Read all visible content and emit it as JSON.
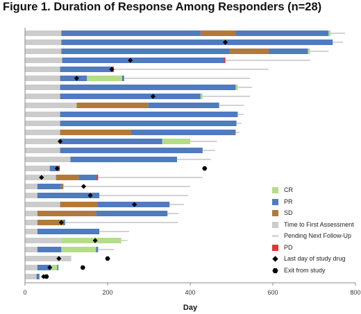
{
  "figure_title": "Figure 1. Duration of Response Among Responders (n=28)",
  "legend": [
    {
      "key": "cr",
      "label": "CR",
      "symbol": "square",
      "color": "#b5dd88"
    },
    {
      "key": "pr",
      "label": "PR",
      "symbol": "square",
      "color": "#4f7bbf"
    },
    {
      "key": "sd",
      "label": "SD",
      "symbol": "square",
      "color": "#b07a3a"
    },
    {
      "key": "tfa",
      "label": "Time to First Assessment",
      "symbol": "square",
      "color": "#cccccc"
    },
    {
      "key": "pending",
      "label": "Pending Next Follow-Up",
      "symbol": "line",
      "color": "#c4c4c4"
    },
    {
      "key": "pd",
      "label": "PD",
      "symbol": "square",
      "color": "#d93a36"
    },
    {
      "key": "last_dose",
      "label": "Last day of study drug",
      "symbol": "diamond",
      "color": "#000000"
    },
    {
      "key": "exit",
      "label": "Exit from study",
      "symbol": "hexagon",
      "color": "#000000"
    }
  ],
  "chart_data": {
    "type": "bar",
    "orientation": "horizontal",
    "stacked": true,
    "title": "Figure 1. Duration of Response Among Responders (n=28)",
    "xlabel": "Day",
    "ylabel": "",
    "xlim": [
      0,
      800
    ],
    "xticks": [
      0,
      200,
      400,
      600,
      800
    ],
    "grid": false,
    "legend_position": "lower-right",
    "colors": {
      "cr": "#b5dd88",
      "pr": "#4f7bbf",
      "sd": "#b07a3a",
      "tfa": "#cccccc",
      "pending": "#c4c4c4",
      "pd": "#d93a36",
      "marker": "#000000"
    },
    "patients": [
      {
        "segments": [
          {
            "state": "tfa",
            "from": 0,
            "to": 88
          },
          {
            "state": "pr",
            "from": 88,
            "to": 425
          },
          {
            "state": "sd",
            "from": 425,
            "to": 510
          },
          {
            "state": "pr",
            "from": 510,
            "to": 735
          },
          {
            "state": "cr",
            "from": 735,
            "to": 740
          }
        ],
        "pending_to": 775
      },
      {
        "segments": [
          {
            "state": "tfa",
            "from": 0,
            "to": 88
          },
          {
            "state": "pr",
            "from": 88,
            "to": 745
          }
        ],
        "pending_to": 770,
        "last_dose": 485
      },
      {
        "segments": [
          {
            "state": "tfa",
            "from": 0,
            "to": 88
          },
          {
            "state": "pr",
            "from": 88,
            "to": 495
          },
          {
            "state": "sd",
            "from": 495,
            "to": 590
          },
          {
            "state": "pr",
            "from": 590,
            "to": 685
          },
          {
            "state": "cr",
            "from": 685,
            "to": 690
          }
        ],
        "pending_to": 735
      },
      {
        "segments": [
          {
            "state": "tfa",
            "from": 0,
            "to": 90
          },
          {
            "state": "pr",
            "from": 90,
            "to": 480
          },
          {
            "state": "pd",
            "from": 480,
            "to": 485
          }
        ],
        "pending_to": 690,
        "last_dose": 255
      },
      {
        "segments": [
          {
            "state": "tfa",
            "from": 0,
            "to": 85
          },
          {
            "state": "pr",
            "from": 85,
            "to": 210
          },
          {
            "state": "pd",
            "from": 210,
            "to": 215
          }
        ],
        "pending_to": 590,
        "last_dose": 210
      },
      {
        "segments": [
          {
            "state": "tfa",
            "from": 0,
            "to": 85
          },
          {
            "state": "pr",
            "from": 85,
            "to": 150
          },
          {
            "state": "cr",
            "from": 150,
            "to": 235
          },
          {
            "state": "pr",
            "from": 235,
            "to": 240
          }
        ],
        "pending_to": 545,
        "last_dose": 125
      },
      {
        "segments": [
          {
            "state": "tfa",
            "from": 0,
            "to": 85
          },
          {
            "state": "pr",
            "from": 85,
            "to": 510
          },
          {
            "state": "cr",
            "from": 510,
            "to": 515
          }
        ],
        "pending_to": 550
      },
      {
        "segments": [
          {
            "state": "tfa",
            "from": 0,
            "to": 85
          },
          {
            "state": "pr",
            "from": 85,
            "to": 425
          },
          {
            "state": "cr",
            "from": 425,
            "to": 430
          }
        ],
        "pending_to": 545,
        "last_dose": 310
      },
      {
        "segments": [
          {
            "state": "tfa",
            "from": 0,
            "to": 125
          },
          {
            "state": "sd",
            "from": 125,
            "to": 298
          },
          {
            "state": "pr",
            "from": 298,
            "to": 470
          }
        ],
        "pending_to": 530
      },
      {
        "segments": [
          {
            "state": "tfa",
            "from": 0,
            "to": 85
          },
          {
            "state": "pr",
            "from": 85,
            "to": 515
          }
        ],
        "pending_to": 530
      },
      {
        "segments": [
          {
            "state": "tfa",
            "from": 0,
            "to": 85
          },
          {
            "state": "pr",
            "from": 85,
            "to": 512
          }
        ],
        "pending_to": 525
      },
      {
        "segments": [
          {
            "state": "tfa",
            "from": 0,
            "to": 85
          },
          {
            "state": "sd",
            "from": 85,
            "to": 258
          },
          {
            "state": "pr",
            "from": 258,
            "to": 510
          }
        ],
        "pending_to": 520
      },
      {
        "segments": [
          {
            "state": "tfa",
            "from": 0,
            "to": 85
          },
          {
            "state": "pr",
            "from": 85,
            "to": 332
          },
          {
            "state": "cr",
            "from": 332,
            "to": 400
          }
        ],
        "pending_to": 465,
        "last_dose": 85
      },
      {
        "segments": [
          {
            "state": "tfa",
            "from": 0,
            "to": 85
          },
          {
            "state": "pr",
            "from": 85,
            "to": 430
          }
        ],
        "pending_to": 460
      },
      {
        "segments": [
          {
            "state": "tfa",
            "from": 0,
            "to": 110
          },
          {
            "state": "pr",
            "from": 110,
            "to": 368
          }
        ],
        "pending_to": 450
      },
      {
        "segments": [
          {
            "state": "tfa",
            "from": 0,
            "to": 60
          },
          {
            "state": "pr",
            "from": 60,
            "to": 80
          },
          {
            "state": "pd",
            "from": 80,
            "to": 84
          }
        ],
        "last_dose": 78,
        "exit": 435
      },
      {
        "segments": [
          {
            "state": "tfa",
            "from": 0,
            "to": 75
          },
          {
            "state": "sd",
            "from": 75,
            "to": 130
          },
          {
            "state": "pr",
            "from": 130,
            "to": 173
          },
          {
            "state": "pd",
            "from": 173,
            "to": 177
          }
        ],
        "pending_to": 430,
        "last_dose": 40
      },
      {
        "segments": [
          {
            "state": "tfa",
            "from": 0,
            "to": 30
          },
          {
            "state": "pr",
            "from": 30,
            "to": 87
          },
          {
            "state": "sd",
            "from": 87,
            "to": 93
          }
        ],
        "pending_to": 400,
        "last_dose": 142
      },
      {
        "segments": [
          {
            "state": "tfa",
            "from": 0,
            "to": 30
          },
          {
            "state": "pr",
            "from": 30,
            "to": 180
          }
        ],
        "pending_to": 395,
        "last_dose": 158
      },
      {
        "segments": [
          {
            "state": "tfa",
            "from": 0,
            "to": 85
          },
          {
            "state": "sd",
            "from": 85,
            "to": 175
          },
          {
            "state": "pr",
            "from": 175,
            "to": 350
          }
        ],
        "pending_to": 385,
        "last_dose": 265
      },
      {
        "segments": [
          {
            "state": "tfa",
            "from": 0,
            "to": 30
          },
          {
            "state": "sd",
            "from": 30,
            "to": 172
          },
          {
            "state": "pr",
            "from": 172,
            "to": 345
          }
        ],
        "pending_to": 372
      },
      {
        "segments": [
          {
            "state": "tfa",
            "from": 0,
            "to": 30
          },
          {
            "state": "sd",
            "from": 30,
            "to": 92
          },
          {
            "state": "pr",
            "from": 92,
            "to": 97
          }
        ],
        "pending_to": 370,
        "last_dose": 88
      },
      {
        "segments": [
          {
            "state": "tfa",
            "from": 0,
            "to": 30
          },
          {
            "state": "pr",
            "from": 30,
            "to": 180
          }
        ],
        "pending_to": 252
      },
      {
        "segments": [
          {
            "state": "tfa",
            "from": 0,
            "to": 88
          },
          {
            "state": "cr",
            "from": 88,
            "to": 233
          }
        ],
        "pending_to": 248,
        "last_dose": 170
      },
      {
        "segments": [
          {
            "state": "tfa",
            "from": 0,
            "to": 30
          },
          {
            "state": "pr",
            "from": 30,
            "to": 88
          },
          {
            "state": "cr",
            "from": 88,
            "to": 172
          },
          {
            "state": "pr",
            "from": 172,
            "to": 177
          }
        ],
        "pending_to": 215
      },
      {
        "segments": [
          {
            "state": "tfa",
            "from": 0,
            "to": 112
          }
        ],
        "last_dose": 82,
        "exit": 200
      },
      {
        "segments": [
          {
            "state": "tfa",
            "from": 0,
            "to": 30
          },
          {
            "state": "pr",
            "from": 30,
            "to": 62
          },
          {
            "state": "cr",
            "from": 62,
            "to": 78
          },
          {
            "state": "pr",
            "from": 78,
            "to": 81
          }
        ],
        "last_dose": 60,
        "exit": 140
      },
      {
        "segments": [
          {
            "state": "tfa",
            "from": 0,
            "to": 28
          },
          {
            "state": "pr",
            "from": 28,
            "to": 35
          }
        ],
        "last_dose": 45,
        "exit": 52
      }
    ]
  }
}
